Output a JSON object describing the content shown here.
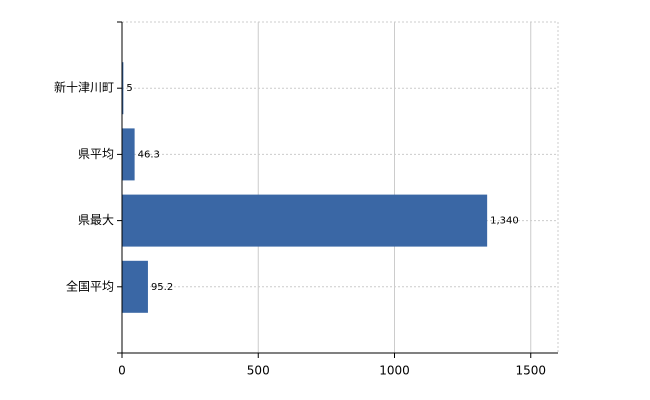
{
  "chart_data": {
    "type": "bar",
    "orientation": "horizontal",
    "categories": [
      "新十津川町",
      "県平均",
      "県最大",
      "全国平均"
    ],
    "values": [
      5,
      46.3,
      1340,
      95.2
    ],
    "value_labels": [
      "5",
      "46.3",
      "1,340",
      "95.2"
    ],
    "color": "#3a67a5",
    "xlim": [
      0,
      1600
    ],
    "xticks": [
      0,
      500,
      1000,
      1500
    ],
    "grid": true
  }
}
